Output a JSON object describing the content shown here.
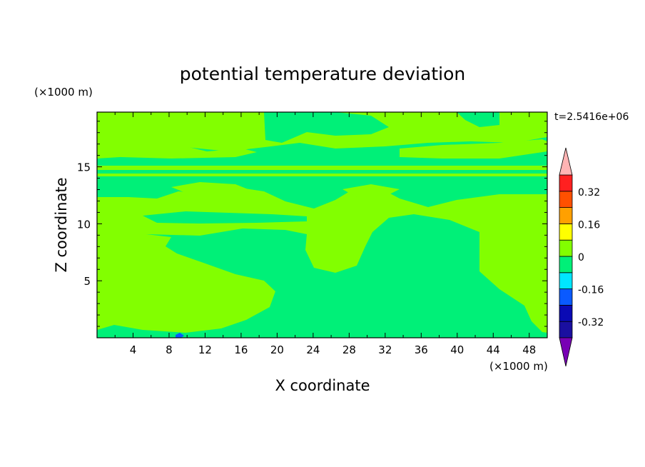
{
  "chart_data": {
    "type": "heatmap",
    "title": "potential temperature deviation",
    "xlabel": "X coordinate",
    "ylabel": "Z coordinate",
    "x_unit": "(×1000 m)",
    "y_unit": "(×1000 m)",
    "time_label": "t=2.5416e+06",
    "xlim": [
      0,
      50
    ],
    "ylim": [
      0,
      19.8
    ],
    "x_ticks": [
      4,
      8,
      12,
      16,
      20,
      24,
      28,
      32,
      36,
      40,
      44,
      48
    ],
    "y_ticks": [
      5,
      10,
      15
    ],
    "colorbar": {
      "levels": [
        -0.4,
        -0.32,
        -0.24,
        -0.16,
        -0.08,
        0,
        0.08,
        0.16,
        0.24,
        0.32,
        0.4
      ],
      "tick_labels": [
        "0.32",
        "0.16",
        "0",
        "-0.16",
        "-0.32"
      ],
      "tick_values": [
        0.32,
        0.16,
        0,
        -0.16,
        -0.32
      ],
      "colors": [
        "#1a0fa0",
        "#0a0ab4",
        "#0a5aff",
        "#00e6ff",
        "#00f078",
        "#82ff00",
        "#ffff00",
        "#ffa000",
        "#ff5000",
        "#ff2020"
      ],
      "over_color": "#ffb4b4",
      "under_color": "#7800b4"
    },
    "dominant_bins": {
      "background": "#82ff00",
      "near_zero_negative": "#00f078",
      "min_patch": "#0a5aff"
    },
    "grid": false,
    "legend": "right"
  }
}
